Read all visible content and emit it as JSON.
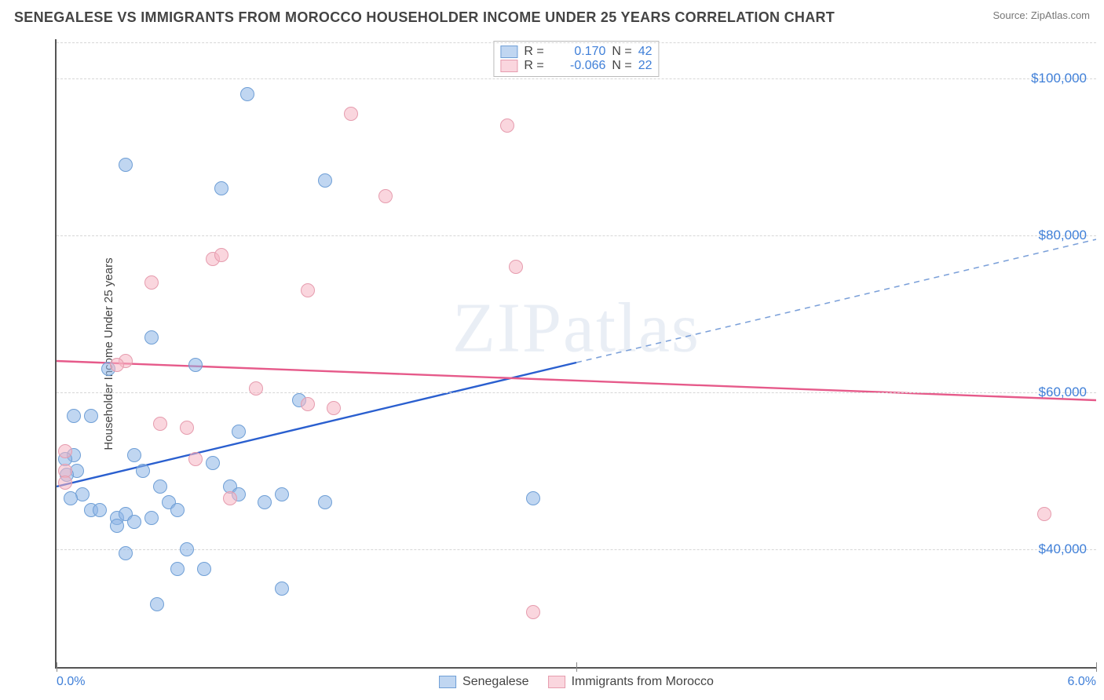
{
  "title": "SENEGALESE VS IMMIGRANTS FROM MOROCCO HOUSEHOLDER INCOME UNDER 25 YEARS CORRELATION CHART",
  "source": "Source: ZipAtlas.com",
  "ylabel": "Householder Income Under 25 years",
  "watermark": "ZIPatlas",
  "chart": {
    "type": "scatter",
    "xlim": [
      0.0,
      6.0
    ],
    "ylim": [
      25000,
      105000
    ],
    "yticks": [
      40000,
      60000,
      80000,
      100000
    ],
    "ytick_labels": [
      "$40,000",
      "$60,000",
      "$80,000",
      "$100,000"
    ],
    "xticks": [
      0.0,
      3.0,
      6.0
    ],
    "xtick_labels": {
      "first": "0.0%",
      "last": "6.0%"
    },
    "grid_color": "#d6d6d6",
    "background_color": "#ffffff",
    "marker_size": 18,
    "series": [
      {
        "name": "Senegalese",
        "color_fill": "rgba(140,180,230,0.55)",
        "color_stroke": "#6f9fd6",
        "r_label": "R =",
        "r_value": "0.170",
        "n_label": "N =",
        "n_value": "42",
        "trend": {
          "x1": 0.0,
          "y1": 48000,
          "x2": 3.0,
          "y2": 63800,
          "x2_ext": 6.0,
          "y2_ext": 79500,
          "solid_color": "#2a5fcf",
          "dash_color": "#7ba0d9",
          "width": 2.4
        },
        "points": [
          [
            0.4,
            89000
          ],
          [
            1.1,
            98000
          ],
          [
            0.95,
            86000
          ],
          [
            1.55,
            87000
          ],
          [
            0.55,
            67000
          ],
          [
            0.3,
            63000
          ],
          [
            0.8,
            63500
          ],
          [
            0.1,
            57000
          ],
          [
            0.1,
            52000
          ],
          [
            0.12,
            50000
          ],
          [
            0.15,
            47000
          ],
          [
            0.2,
            45000
          ],
          [
            0.25,
            45000
          ],
          [
            0.35,
            44000
          ],
          [
            0.35,
            43000
          ],
          [
            0.4,
            44500
          ],
          [
            0.45,
            43500
          ],
          [
            0.55,
            44000
          ],
          [
            0.45,
            52000
          ],
          [
            0.5,
            50000
          ],
          [
            0.6,
            48000
          ],
          [
            0.65,
            46000
          ],
          [
            0.7,
            45000
          ],
          [
            0.75,
            40000
          ],
          [
            0.85,
            37500
          ],
          [
            0.7,
            37500
          ],
          [
            0.58,
            33000
          ],
          [
            0.4,
            39500
          ],
          [
            1.0,
            48000
          ],
          [
            1.05,
            47000
          ],
          [
            1.3,
            47000
          ],
          [
            1.05,
            55000
          ],
          [
            1.2,
            46000
          ],
          [
            1.3,
            35000
          ],
          [
            1.55,
            46000
          ],
          [
            1.4,
            59000
          ],
          [
            2.75,
            46500
          ],
          [
            0.05,
            51500
          ],
          [
            0.06,
            49500
          ],
          [
            0.08,
            46500
          ],
          [
            0.2,
            57000
          ],
          [
            0.9,
            51000
          ]
        ]
      },
      {
        "name": "Immigrants from Morocco",
        "color_fill": "rgba(245,180,195,0.55)",
        "color_stroke": "#e69cae",
        "r_label": "R =",
        "r_value": "-0.066",
        "n_label": "N =",
        "n_value": "22",
        "trend": {
          "x1": 0.0,
          "y1": 64000,
          "x2": 6.0,
          "y2": 59000,
          "solid_color": "#e65a8a",
          "width": 2.4
        },
        "points": [
          [
            1.7,
            95500
          ],
          [
            2.6,
            94000
          ],
          [
            1.9,
            85000
          ],
          [
            0.9,
            77000
          ],
          [
            0.95,
            77500
          ],
          [
            2.65,
            76000
          ],
          [
            0.55,
            74000
          ],
          [
            0.4,
            64000
          ],
          [
            0.35,
            63500
          ],
          [
            0.6,
            56000
          ],
          [
            1.15,
            60500
          ],
          [
            1.45,
            58500
          ],
          [
            1.45,
            73000
          ],
          [
            1.6,
            58000
          ],
          [
            0.75,
            55500
          ],
          [
            0.8,
            51500
          ],
          [
            1.0,
            46500
          ],
          [
            0.05,
            52500
          ],
          [
            0.05,
            50000
          ],
          [
            0.05,
            48500
          ],
          [
            2.75,
            32000
          ],
          [
            5.7,
            44500
          ]
        ]
      }
    ]
  }
}
